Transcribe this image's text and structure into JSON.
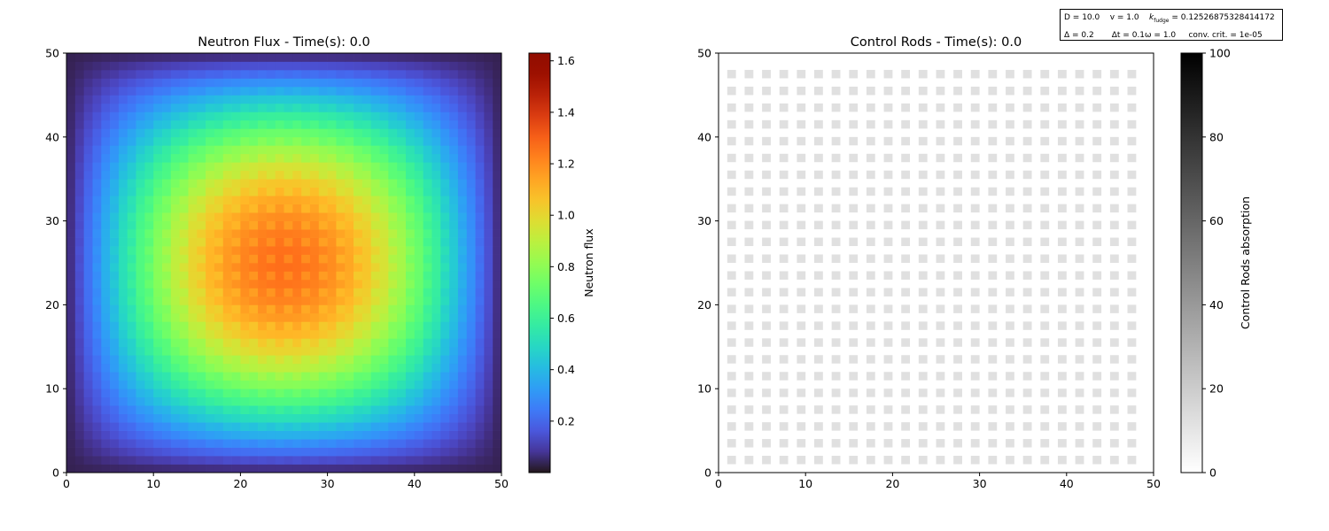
{
  "params_box": {
    "line1": {
      "D": "D = 10.0",
      "v": "v = 1.0",
      "k_label": "k",
      "k_sub": "fudge",
      "k_value": " = 0.12526875328414172"
    },
    "line2": {
      "delta": "Δ = 0.2",
      "dt": "Δt = 0.1",
      "omega": "ω = 1.0",
      "conv": "conv. crit. = 1e-05"
    }
  },
  "chart_data": [
    {
      "type": "heatmap",
      "title": "Neutron Flux - Time(s): 0.0",
      "xlabel": "",
      "ylabel": "",
      "x_range": [
        0,
        50
      ],
      "y_range": [
        0,
        50
      ],
      "grid_size": 50,
      "xticks": [
        0,
        10,
        20,
        30,
        40,
        50
      ],
      "yticks": [
        0,
        10,
        20,
        30,
        40,
        50
      ],
      "colormap": "turbo",
      "colorbar": {
        "label": "Neutron flux",
        "vmin": 0.0,
        "vmax": 1.63,
        "ticks": [
          0.2,
          0.4,
          0.6,
          0.8,
          1.0,
          1.2,
          1.4,
          1.6
        ]
      },
      "field": {
        "shape": "separable sine profile",
        "peak_value": 1.27,
        "corner_value": 0.03,
        "rod_cell_value": 1.2,
        "rod_spacing": 2
      }
    },
    {
      "type": "heatmap",
      "title": "Control Rods - Time(s): 0.0",
      "xlabel": "",
      "ylabel": "",
      "x_range": [
        0,
        50
      ],
      "y_range": [
        0,
        50
      ],
      "xticks": [
        0,
        10,
        20,
        30,
        40,
        50
      ],
      "yticks": [
        0,
        10,
        20,
        30,
        40,
        50
      ],
      "colormap": "greys",
      "colorbar": {
        "label": "Control Rods absorption",
        "vmin": 0,
        "vmax": 100,
        "ticks": [
          0,
          20,
          40,
          60,
          80,
          100
        ]
      },
      "rods": {
        "count_x": 24,
        "count_y": 24,
        "first_center": 1.5,
        "spacing": 2,
        "size": 1,
        "absorption": 12
      }
    }
  ]
}
